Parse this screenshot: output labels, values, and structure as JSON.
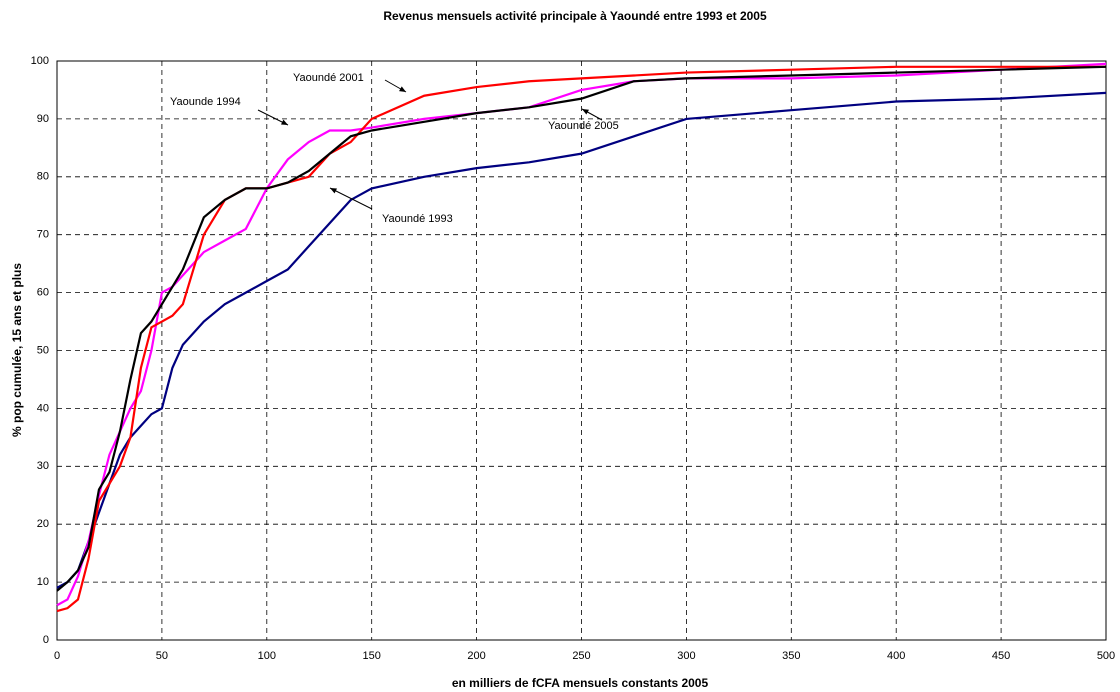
{
  "chart_data": {
    "type": "line",
    "title": "Revenus mensuels activité principale à Yaoundé entre 1993 et 2005",
    "x_label": "en milliers de fCFA mensuels constants 2005",
    "y_label": "% pop cumulée, 15 ans et plus",
    "x": [
      0,
      5,
      10,
      15,
      20,
      25,
      30,
      35,
      40,
      45,
      50,
      55,
      60,
      70,
      80,
      90,
      100,
      110,
      120,
      130,
      140,
      150,
      175,
      200,
      225,
      250,
      275,
      300,
      350,
      400,
      450,
      500
    ],
    "series": [
      {
        "name": "Yaoundé 1993",
        "color": "#000080",
        "values": [
          9,
          10,
          12,
          17,
          22,
          27,
          32,
          35,
          37,
          39,
          40,
          47,
          51,
          55,
          58,
          60,
          62,
          64,
          68,
          72,
          76,
          78,
          80,
          81.5,
          82.5,
          84,
          87,
          90,
          91.5,
          93,
          93.5,
          94.5
        ]
      },
      {
        "name": "Yaounde 1994",
        "color": "#ff00ff",
        "values": [
          6,
          7,
          11,
          17,
          25,
          32,
          36,
          40,
          43,
          50,
          60,
          61,
          63,
          67,
          69,
          71,
          78,
          83,
          86,
          88,
          88,
          88.5,
          90,
          91,
          92,
          95,
          96.5,
          97,
          97,
          97.5,
          98.5,
          99.5
        ]
      },
      {
        "name": "Yaoundé 2001",
        "color": "#ff0000",
        "values": [
          5,
          5.5,
          7,
          14,
          24,
          27,
          30,
          35,
          47,
          54,
          55,
          56,
          58,
          70,
          76,
          78,
          78,
          79,
          80,
          84,
          86,
          90,
          94,
          95.5,
          96.5,
          97,
          97.5,
          98,
          98.5,
          99,
          99,
          99
        ]
      },
      {
        "name": "Yaoundé 2005",
        "color": "#000000",
        "values": [
          8.5,
          10,
          12,
          16,
          26,
          29,
          36,
          45,
          53,
          55,
          58,
          61,
          64,
          73,
          76,
          78,
          78,
          79,
          81,
          84,
          87,
          88,
          89.5,
          91,
          92,
          93.5,
          96.5,
          97,
          97.5,
          98,
          98.5,
          99
        ]
      }
    ],
    "xlim": [
      0,
      500
    ],
    "xticks": [
      0,
      50,
      100,
      150,
      200,
      250,
      300,
      350,
      400,
      450,
      500
    ],
    "ylim": [
      0,
      100
    ],
    "yticks": [
      0,
      10,
      20,
      30,
      40,
      50,
      60,
      70,
      80,
      90,
      100
    ],
    "grid": true
  }
}
